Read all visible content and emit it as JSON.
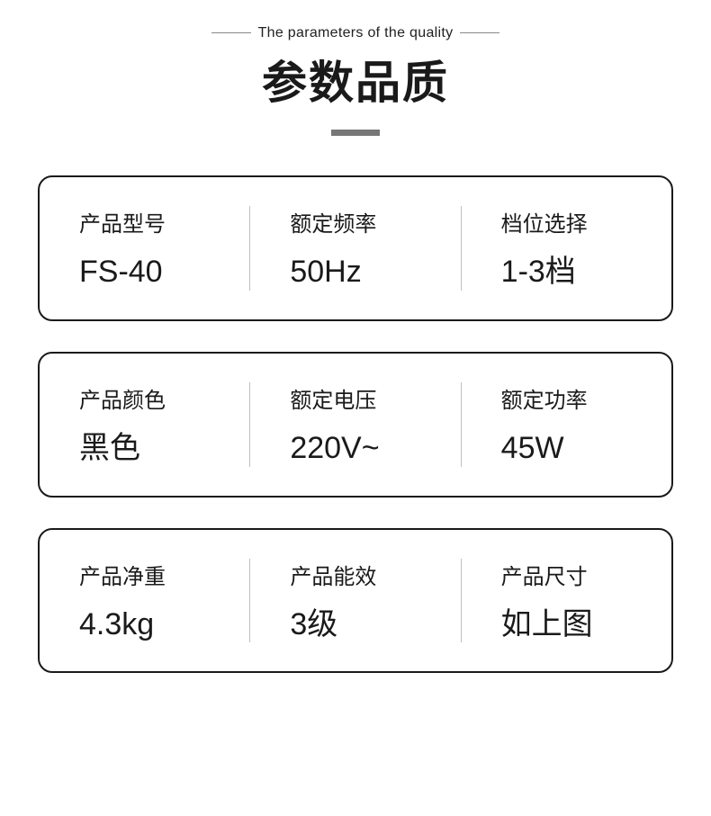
{
  "header": {
    "subtitle": "The parameters of the quality",
    "title": "参数品质"
  },
  "rows": [
    [
      {
        "label": "产品型号",
        "value": "FS-40"
      },
      {
        "label": "额定频率",
        "value": "50Hz"
      },
      {
        "label": "档位选择",
        "value": "1-3档"
      }
    ],
    [
      {
        "label": "产品颜色",
        "value": "黑色"
      },
      {
        "label": "额定电压",
        "value": "220V~"
      },
      {
        "label": "额定功率",
        "value": "45W"
      }
    ],
    [
      {
        "label": "产品净重",
        "value": "4.3kg"
      },
      {
        "label": "产品能效",
        "value": "3级"
      },
      {
        "label": "产品尺寸",
        "value": "如上图"
      }
    ]
  ],
  "styles": {
    "background_color": "#ffffff",
    "text_color": "#1a1a1a",
    "border_color": "#1a1a1a",
    "cell_divider_color": "#bfbfbf",
    "divider_color": "#777777",
    "border_radius": 16,
    "title_fontsize": 50,
    "subtitle_fontsize": 16,
    "label_fontsize": 24,
    "value_fontsize": 34
  }
}
